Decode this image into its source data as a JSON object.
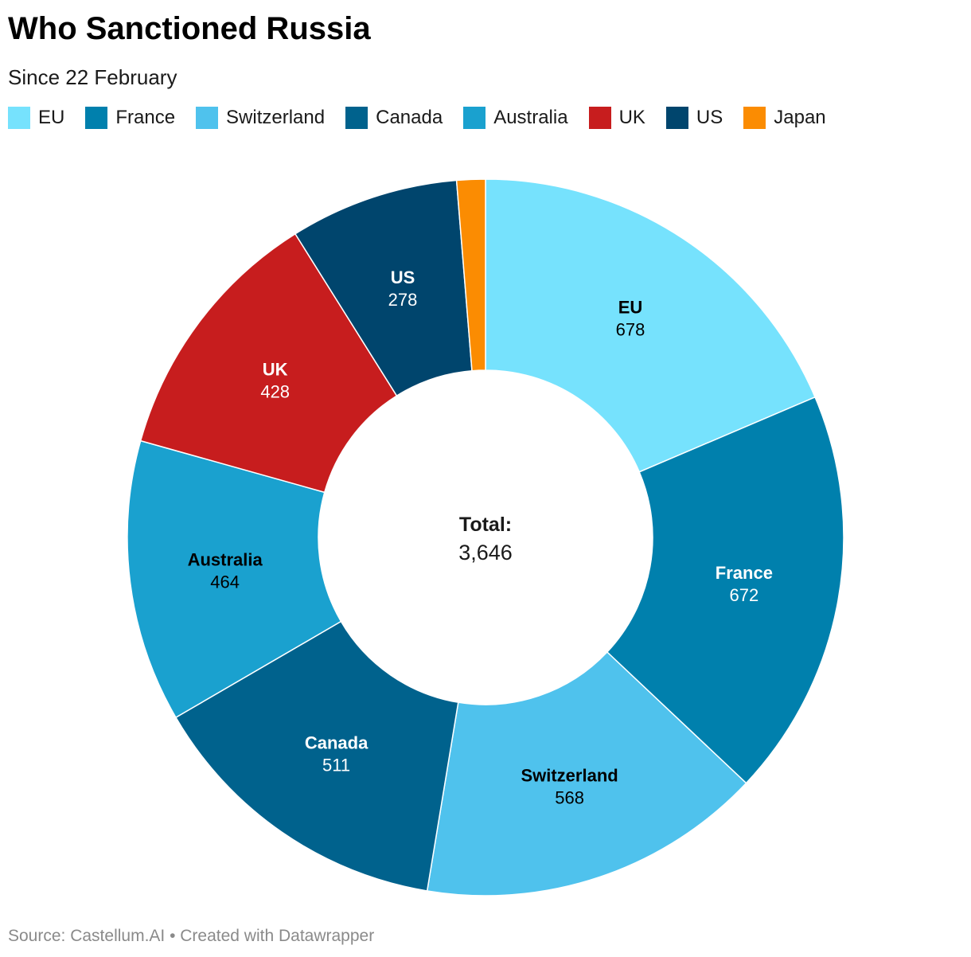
{
  "title": "Who Sanctioned Russia",
  "subtitle": "Since 22 February",
  "source_line": "Source: Castellum.AI • Created with Datawrapper",
  "chart_data": {
    "type": "pie",
    "variant": "donut",
    "title": "Who Sanctioned Russia",
    "subtitle": "Since 22 February",
    "legend_position": "top-left",
    "center_label": "Total:",
    "center_value": "3,646",
    "slices": [
      {
        "name": "EU",
        "value": 678,
        "label": "678",
        "color": "#76e2fd",
        "text_color": "#000000"
      },
      {
        "name": "France",
        "value": 672,
        "label": "672",
        "color": "#0080ad",
        "text_color": "#ffffff"
      },
      {
        "name": "Switzerland",
        "value": 568,
        "label": "568",
        "color": "#4fc2ed",
        "text_color": "#000000"
      },
      {
        "name": "Canada",
        "value": 511,
        "label": "511",
        "color": "#00628d",
        "text_color": "#ffffff"
      },
      {
        "name": "Australia",
        "value": 464,
        "label": "464",
        "color": "#1aa1cf",
        "text_color": "#000000"
      },
      {
        "name": "UK",
        "value": 428,
        "label": "428",
        "color": "#c71d1e",
        "text_color": "#ffffff"
      },
      {
        "name": "US",
        "value": 278,
        "label": "278",
        "color": "#00456d",
        "text_color": "#ffffff"
      },
      {
        "name": "Japan",
        "value": 47,
        "label": "",
        "color": "#fb8c02",
        "text_color": "#000000"
      }
    ]
  }
}
